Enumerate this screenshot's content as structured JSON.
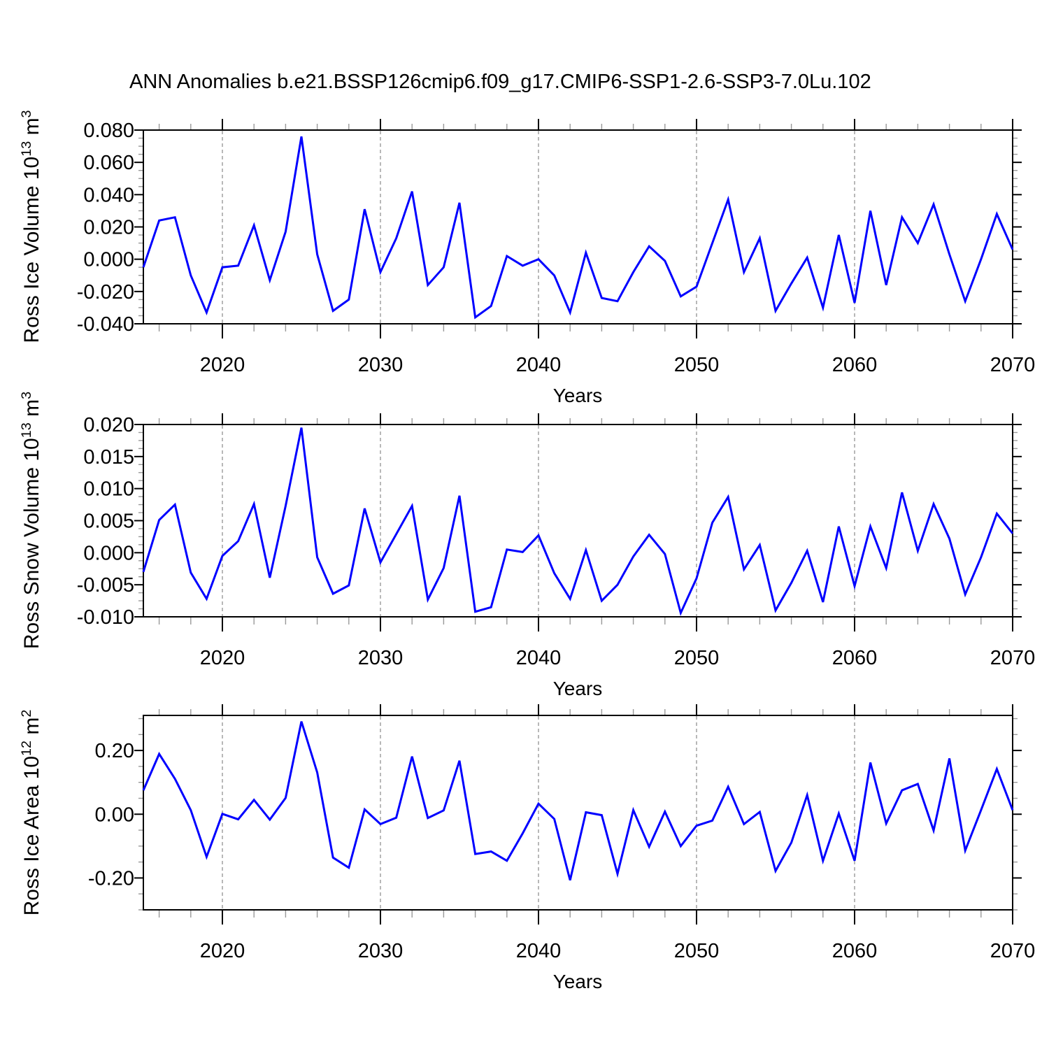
{
  "title": "ANN Anomalies b.e21.BSSP126cmip6.f09_g17.CMIP6-SSP1-2.6-SSP3-7.0Lu.102",
  "x_axis": {
    "label": "Years",
    "range": [
      2015,
      2070
    ],
    "major_ticks": [
      2020,
      2030,
      2040,
      2050,
      2060,
      2070
    ],
    "tick_labels": [
      "2020",
      "2030",
      "2040",
      "2050",
      "2060",
      "2070"
    ],
    "minor_step": 2,
    "gridlines": [
      2020,
      2030,
      2040,
      2050,
      2060
    ]
  },
  "style": {
    "line_color": "#0000ff",
    "axis_color": "#000000",
    "minor_tick_color": "#999999",
    "gridline_color": "#999999"
  },
  "chart_data": [
    {
      "type": "line",
      "series_name": "Ross Ice Volume anomaly",
      "ylabel": "Ross Ice Volume 10^13 m^3",
      "ylabel_parts": [
        "Ross Ice Volume 10",
        "13",
        " m",
        "3"
      ],
      "ylim": [
        -0.04,
        0.08
      ],
      "y_major_ticks": [
        0.08,
        0.06,
        0.04,
        0.02,
        0.0,
        -0.02,
        -0.04
      ],
      "y_tick_labels": [
        "0.080",
        "0.060",
        "0.040",
        "0.020",
        "0.000",
        "-0.020",
        "-0.040"
      ],
      "y_minor_step": 0.005,
      "x_start": 2015,
      "x_end": 2070,
      "x_step": 1,
      "values": [
        -0.005,
        0.024,
        0.026,
        -0.01,
        -0.033,
        -0.005,
        -0.004,
        0.021,
        -0.013,
        0.017,
        0.076,
        0.003,
        -0.032,
        -0.025,
        0.031,
        -0.008,
        0.013,
        0.042,
        -0.016,
        -0.005,
        0.035,
        -0.036,
        -0.029,
        0.002,
        -0.004,
        0.0,
        -0.01,
        -0.033,
        0.004,
        -0.024,
        -0.026,
        -0.008,
        0.008,
        -0.001,
        -0.023,
        -0.017,
        0.01,
        0.037,
        -0.008,
        0.013,
        -0.032,
        -0.015,
        0.001,
        -0.03,
        0.015,
        -0.027,
        0.03,
        -0.016,
        0.026,
        0.01,
        0.034,
        0.003,
        -0.026,
        0.0,
        0.028,
        0.006
      ]
    },
    {
      "type": "line",
      "series_name": "Ross Snow Volume anomaly",
      "ylabel": "Ross Snow Volume 10^13 m^3",
      "ylabel_parts": [
        "Ross Snow Volume 10",
        "13",
        " m",
        "3"
      ],
      "ylim": [
        -0.01,
        0.02
      ],
      "y_major_ticks": [
        0.02,
        0.015,
        0.01,
        0.005,
        0.0,
        -0.005,
        -0.01
      ],
      "y_tick_labels": [
        "0.020",
        "0.015",
        "0.010",
        "0.005",
        "0.000",
        "-0.005",
        "-0.010"
      ],
      "y_minor_step": 0.00125,
      "x_start": 2015,
      "x_end": 2070,
      "x_step": 1,
      "values": [
        -0.003,
        0.0051,
        0.0075,
        -0.0031,
        -0.0072,
        -0.0005,
        0.0018,
        0.0076,
        -0.0039,
        0.0073,
        0.0195,
        -0.0007,
        -0.0064,
        -0.0051,
        0.0069,
        -0.0015,
        0.0029,
        0.0073,
        -0.0073,
        -0.0024,
        0.0089,
        -0.0092,
        -0.0085,
        0.0005,
        0.0001,
        0.0027,
        -0.0032,
        -0.0072,
        0.0004,
        -0.0075,
        -0.005,
        -0.0006,
        0.0028,
        -0.0002,
        -0.0094,
        -0.004,
        0.0047,
        0.0087,
        -0.0026,
        0.0012,
        -0.009,
        -0.0047,
        0.0003,
        -0.0077,
        0.0041,
        -0.0052,
        0.0041,
        -0.0024,
        0.0094,
        0.0003,
        0.0076,
        0.0022,
        -0.0065,
        -0.0007,
        0.0061,
        0.003
      ]
    },
    {
      "type": "line",
      "series_name": "Ross Ice Area anomaly",
      "ylabel": "Ross Ice Area 10^12 m^2",
      "ylabel_parts": [
        "Ross Ice Area 10",
        "12",
        " m",
        "2"
      ],
      "ylim": [
        -0.3,
        0.31
      ],
      "y_major_ticks": [
        0.2,
        0.0,
        -0.2
      ],
      "y_tick_labels": [
        "0.20",
        "0.00",
        "-0.20"
      ],
      "y_minor_step": 0.05,
      "x_start": 2015,
      "x_end": 2070,
      "x_step": 1,
      "values": [
        0.075,
        0.189,
        0.111,
        0.013,
        -0.134,
        0.001,
        -0.016,
        0.045,
        -0.017,
        0.051,
        0.291,
        0.131,
        -0.136,
        -0.168,
        0.015,
        -0.031,
        -0.011,
        0.181,
        -0.012,
        0.012,
        0.168,
        -0.125,
        -0.117,
        -0.146,
        -0.06,
        0.033,
        -0.015,
        -0.207,
        0.006,
        -0.003,
        -0.187,
        0.013,
        -0.102,
        0.008,
        -0.1,
        -0.036,
        -0.02,
        0.086,
        -0.031,
        0.007,
        -0.178,
        -0.089,
        0.06,
        -0.146,
        0.002,
        -0.146,
        0.162,
        -0.029,
        0.075,
        0.095,
        -0.051,
        0.175,
        -0.114,
        0.013,
        0.142,
        0.013
      ]
    }
  ]
}
